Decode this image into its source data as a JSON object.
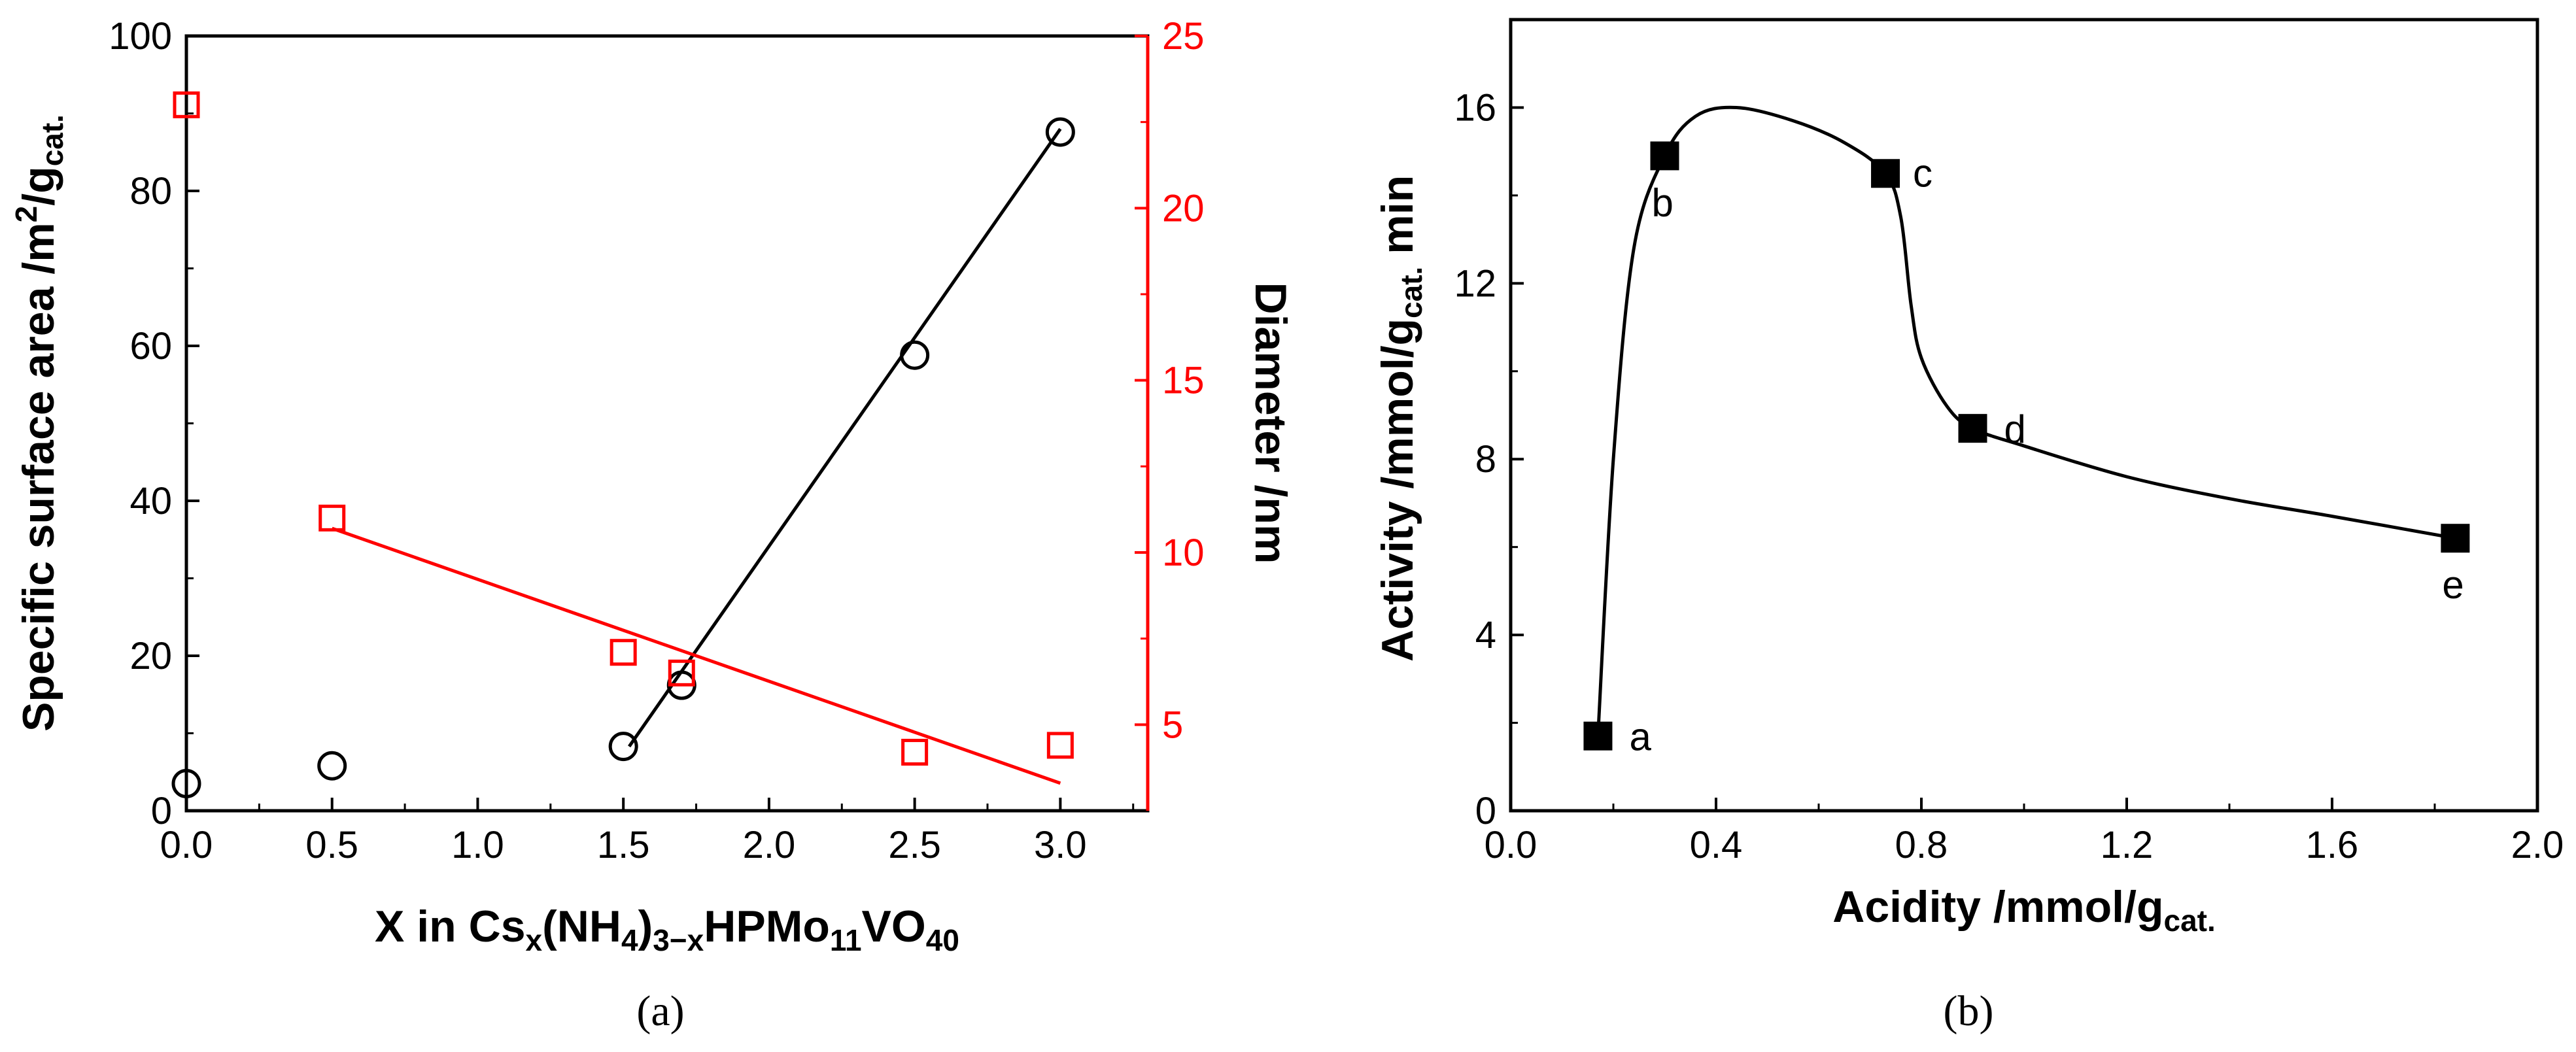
{
  "chart_data": [
    {
      "id": "a",
      "type": "scatter",
      "caption": "(a)",
      "xlabel": {
        "pre": "X in Cs",
        "s1": "x",
        "mid1": "(NH",
        "s2": "4",
        "mid2": ")",
        "s3": "3−x",
        "post": "HPMo",
        "s4": "11",
        "post2": "VO",
        "s5": "40"
      },
      "ylabel_left": {
        "pre": "Specific surface area /m",
        "sup": "2",
        "mid": "/g",
        "sub": "cat."
      },
      "ylabel_right": "Diameter /nm",
      "xlim": [
        0,
        3.3
      ],
      "ylim_left": [
        0,
        100
      ],
      "ylim_right": [
        2.5,
        25
      ],
      "xticks": [
        0.0,
        0.5,
        1.0,
        1.5,
        2.0,
        2.5,
        3.0
      ],
      "xtick_labels": [
        "0.0",
        "0.5",
        "1.0",
        "1.5",
        "2.0",
        "2.5",
        "3.0"
      ],
      "yticks_left": [
        0,
        20,
        40,
        60,
        80,
        100
      ],
      "ytick_labels_left": [
        "0",
        "20",
        "40",
        "60",
        "80",
        "100"
      ],
      "yticks_right": [
        5,
        10,
        15,
        20,
        25
      ],
      "ytick_labels_right": [
        "5",
        "10",
        "15",
        "20",
        "25"
      ],
      "series": [
        {
          "name": "Specific surface area",
          "axis": "left",
          "marker": "circle",
          "color": "#000000",
          "x": [
            0,
            0.5,
            1.5,
            1.7,
            2.5,
            3.0
          ],
          "y": [
            3.5,
            5.8,
            8.3,
            16.2,
            58.8,
            87.6
          ],
          "fit": {
            "x": [
              1.52,
              3.0
            ],
            "y": [
              8.3,
              88.0
            ]
          }
        },
        {
          "name": "Diameter",
          "axis": "right",
          "marker": "square",
          "color": "#ff0000",
          "x": [
            0,
            0.5,
            1.5,
            1.7,
            2.5,
            3.0
          ],
          "y": [
            23.0,
            11.0,
            7.1,
            6.5,
            4.2,
            4.4
          ],
          "fit": {
            "x": [
              0.5,
              3.0
            ],
            "y": [
              10.7,
              3.3
            ]
          }
        }
      ]
    },
    {
      "id": "b",
      "type": "line",
      "caption": "(b)",
      "xlabel": {
        "pre": "Acidity /mmol/g",
        "sub": "cat."
      },
      "ylabel": {
        "pre": "Activity /mmol/g",
        "sub": "cat.",
        "post": " min"
      },
      "xlim": [
        0,
        2.0
      ],
      "ylim": [
        0,
        18
      ],
      "xticks": [
        0.0,
        0.4,
        0.8,
        1.2,
        1.6,
        2.0
      ],
      "xtick_labels": [
        "0.0",
        "0.4",
        "0.8",
        "1.2",
        "1.6",
        "2.0"
      ],
      "yticks": [
        0,
        4,
        8,
        12,
        16
      ],
      "ytick_labels": [
        "0",
        "4",
        "8",
        "12",
        "16"
      ],
      "points": [
        {
          "label": "a",
          "x": 0.17,
          "y": 1.7
        },
        {
          "label": "b",
          "x": 0.3,
          "y": 14.9
        },
        {
          "label": "c",
          "x": 0.73,
          "y": 14.5
        },
        {
          "label": "d",
          "x": 0.9,
          "y": 8.7
        },
        {
          "label": "e",
          "x": 1.84,
          "y": 6.2
        }
      ],
      "curve": {
        "x": [
          0.17,
          0.2,
          0.24,
          0.3,
          0.36,
          0.44,
          0.55,
          0.65,
          0.73,
          0.76,
          0.78,
          0.8,
          0.85,
          0.9,
          1.0,
          1.2,
          1.4,
          1.6,
          1.84
        ],
        "y": [
          1.7,
          8.0,
          12.8,
          14.9,
          15.8,
          16.0,
          15.7,
          15.2,
          14.5,
          13.5,
          11.5,
          10.3,
          9.2,
          8.7,
          8.3,
          7.6,
          7.1,
          6.7,
          6.2
        ]
      }
    }
  ]
}
